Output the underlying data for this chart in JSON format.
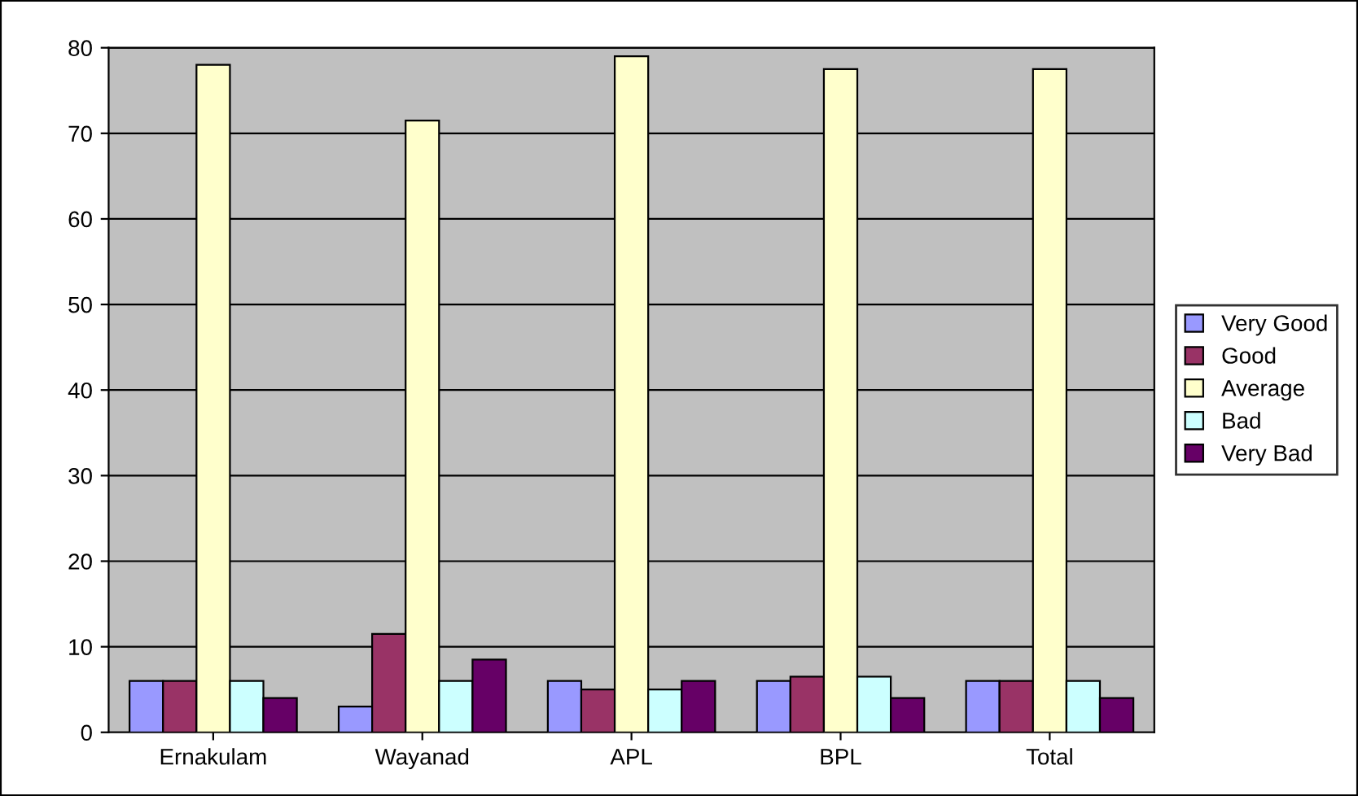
{
  "chart_data": {
    "type": "bar",
    "categories": [
      "Ernakulam",
      "Wayanad",
      "APL",
      "BPL",
      "Total"
    ],
    "series": [
      {
        "name": "Very Good",
        "color": "#9999ff",
        "values": [
          6,
          3,
          6,
          6,
          6
        ]
      },
      {
        "name": "Good",
        "color": "#993366",
        "values": [
          6,
          11.5,
          5,
          6.5,
          6
        ]
      },
      {
        "name": "Average",
        "color": "#ffffcc",
        "values": [
          78,
          71.5,
          79,
          77.5,
          77.5
        ]
      },
      {
        "name": "Bad",
        "color": "#ccffff",
        "values": [
          6,
          6,
          5,
          6.5,
          6
        ]
      },
      {
        "name": "Very Bad",
        "color": "#660066",
        "values": [
          4,
          8.5,
          6,
          4,
          4
        ]
      }
    ],
    "ylim": [
      0,
      80
    ],
    "yticks": [
      0,
      10,
      20,
      30,
      40,
      50,
      60,
      70,
      80
    ],
    "grid": "y",
    "legend": "right"
  }
}
